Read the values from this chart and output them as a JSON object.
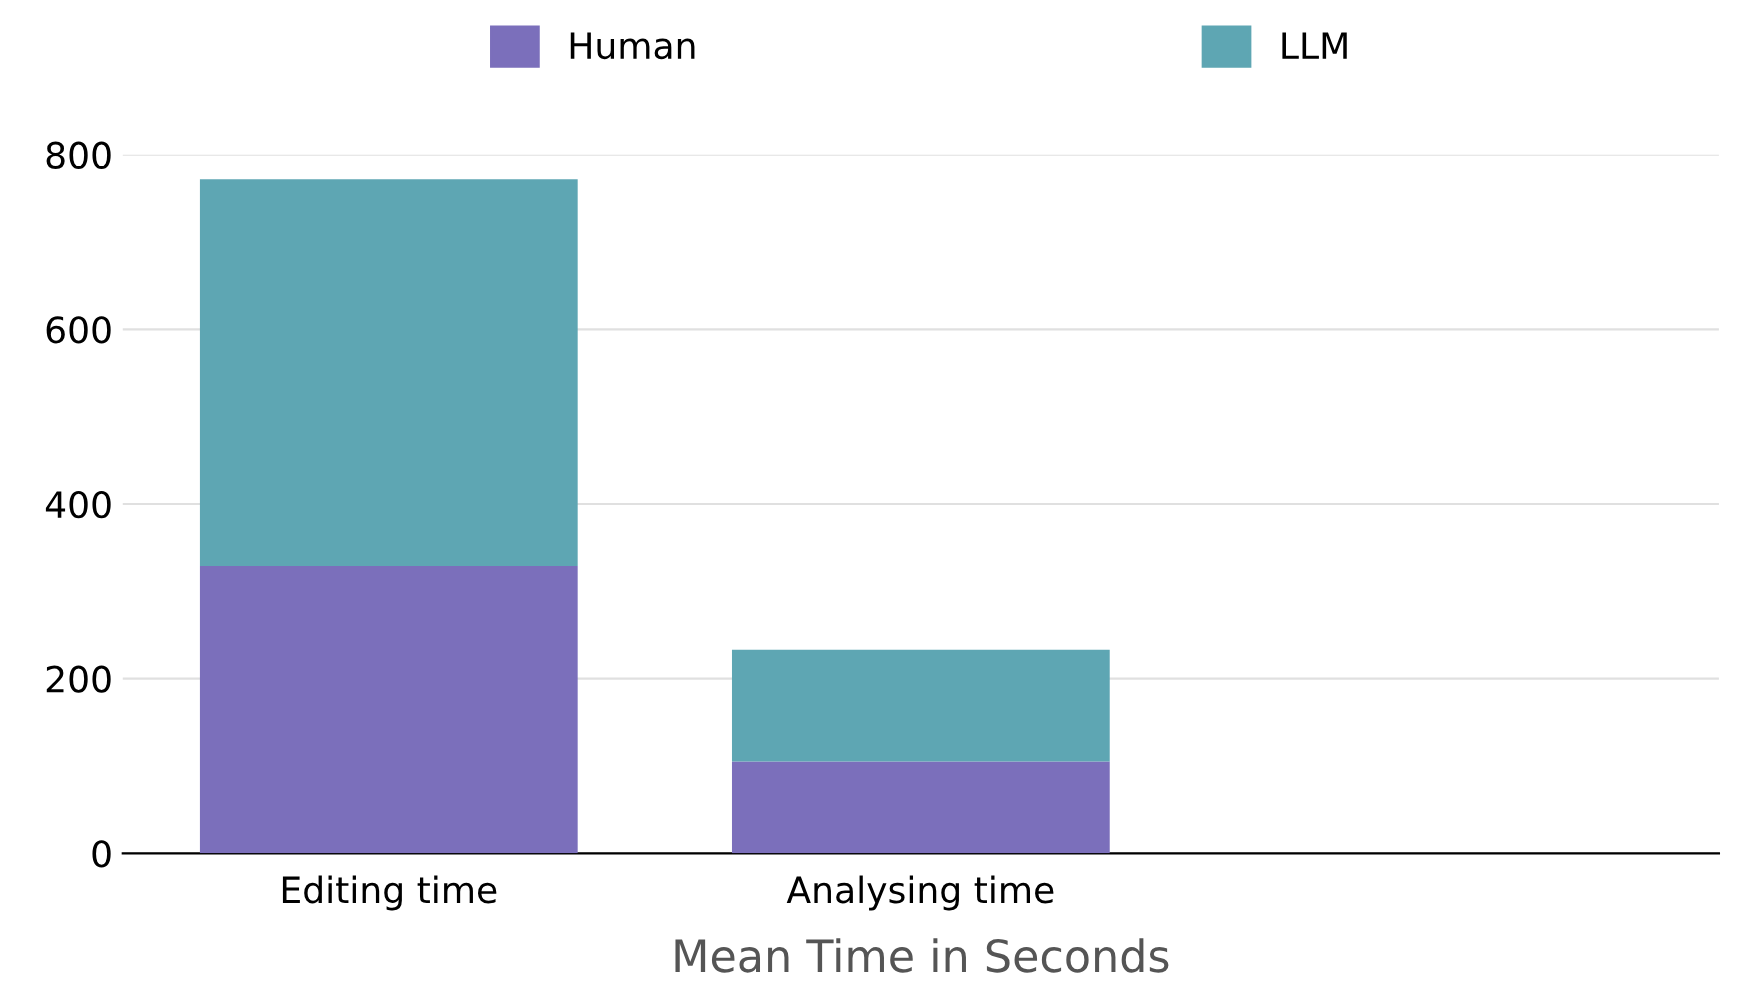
{
  "chart_data": {
    "type": "bar",
    "stacked": true,
    "xlabel": "Mean Time in Seconds",
    "categories": [
      "Editing time",
      "Analysing time",
      null
    ],
    "series": [
      {
        "name": "Human",
        "color": "#7b6fbb",
        "values": [
          329,
          105,
          null
        ]
      },
      {
        "name": "LLM",
        "color": "#5ea6b3",
        "values": [
          443,
          128,
          null
        ]
      }
    ],
    "ylim": [
      0,
      800
    ],
    "yticks": [
      0,
      200,
      400,
      600,
      800
    ],
    "grid": "y",
    "legend": "top"
  }
}
